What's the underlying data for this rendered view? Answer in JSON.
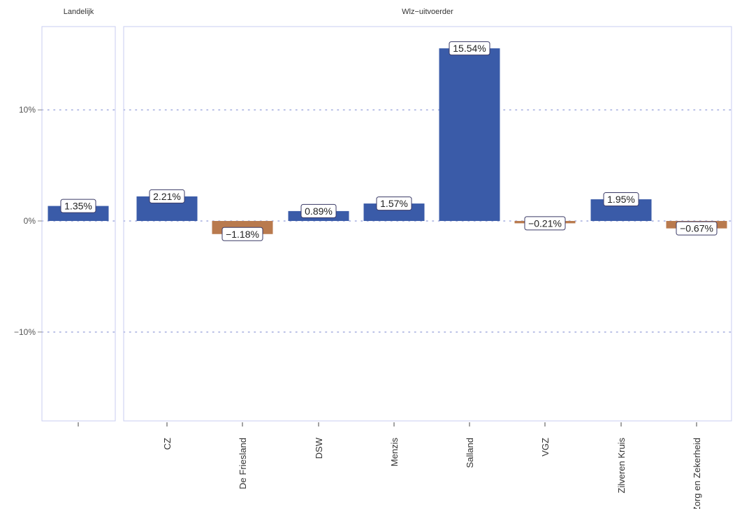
{
  "chart_data": {
    "type": "bar",
    "facets": [
      {
        "label": "Landelijk",
        "categories": [
          ""
        ],
        "values": [
          1.35
        ],
        "labels": [
          "1.35%"
        ]
      },
      {
        "label": "Wlz−uitvoerder",
        "categories": [
          "CZ",
          "De Friesland",
          "DSW",
          "Menzis",
          "Salland",
          "VGZ",
          "Zilveren Kruis",
          "Zorg en Zekerheid"
        ],
        "values": [
          2.21,
          -1.18,
          0.89,
          1.57,
          15.54,
          -0.21,
          1.95,
          -0.67
        ],
        "labels": [
          "2.21%",
          "−1.18%",
          "0.89%",
          "1.57%",
          "15.54%",
          "−0.21%",
          "1.95%",
          "−0.67%"
        ]
      }
    ],
    "y_ticks": [
      -10,
      0,
      10
    ],
    "y_tick_labels": [
      "−10%",
      "0%",
      "10%"
    ],
    "ylim": [
      -18,
      17.5
    ],
    "grid": "horizontal dotted",
    "colors": {
      "positive": "#3a5ba8",
      "negative": "#b97a4e",
      "grid": "#a8b0e0",
      "panel_border": "#c8cdf0"
    }
  }
}
